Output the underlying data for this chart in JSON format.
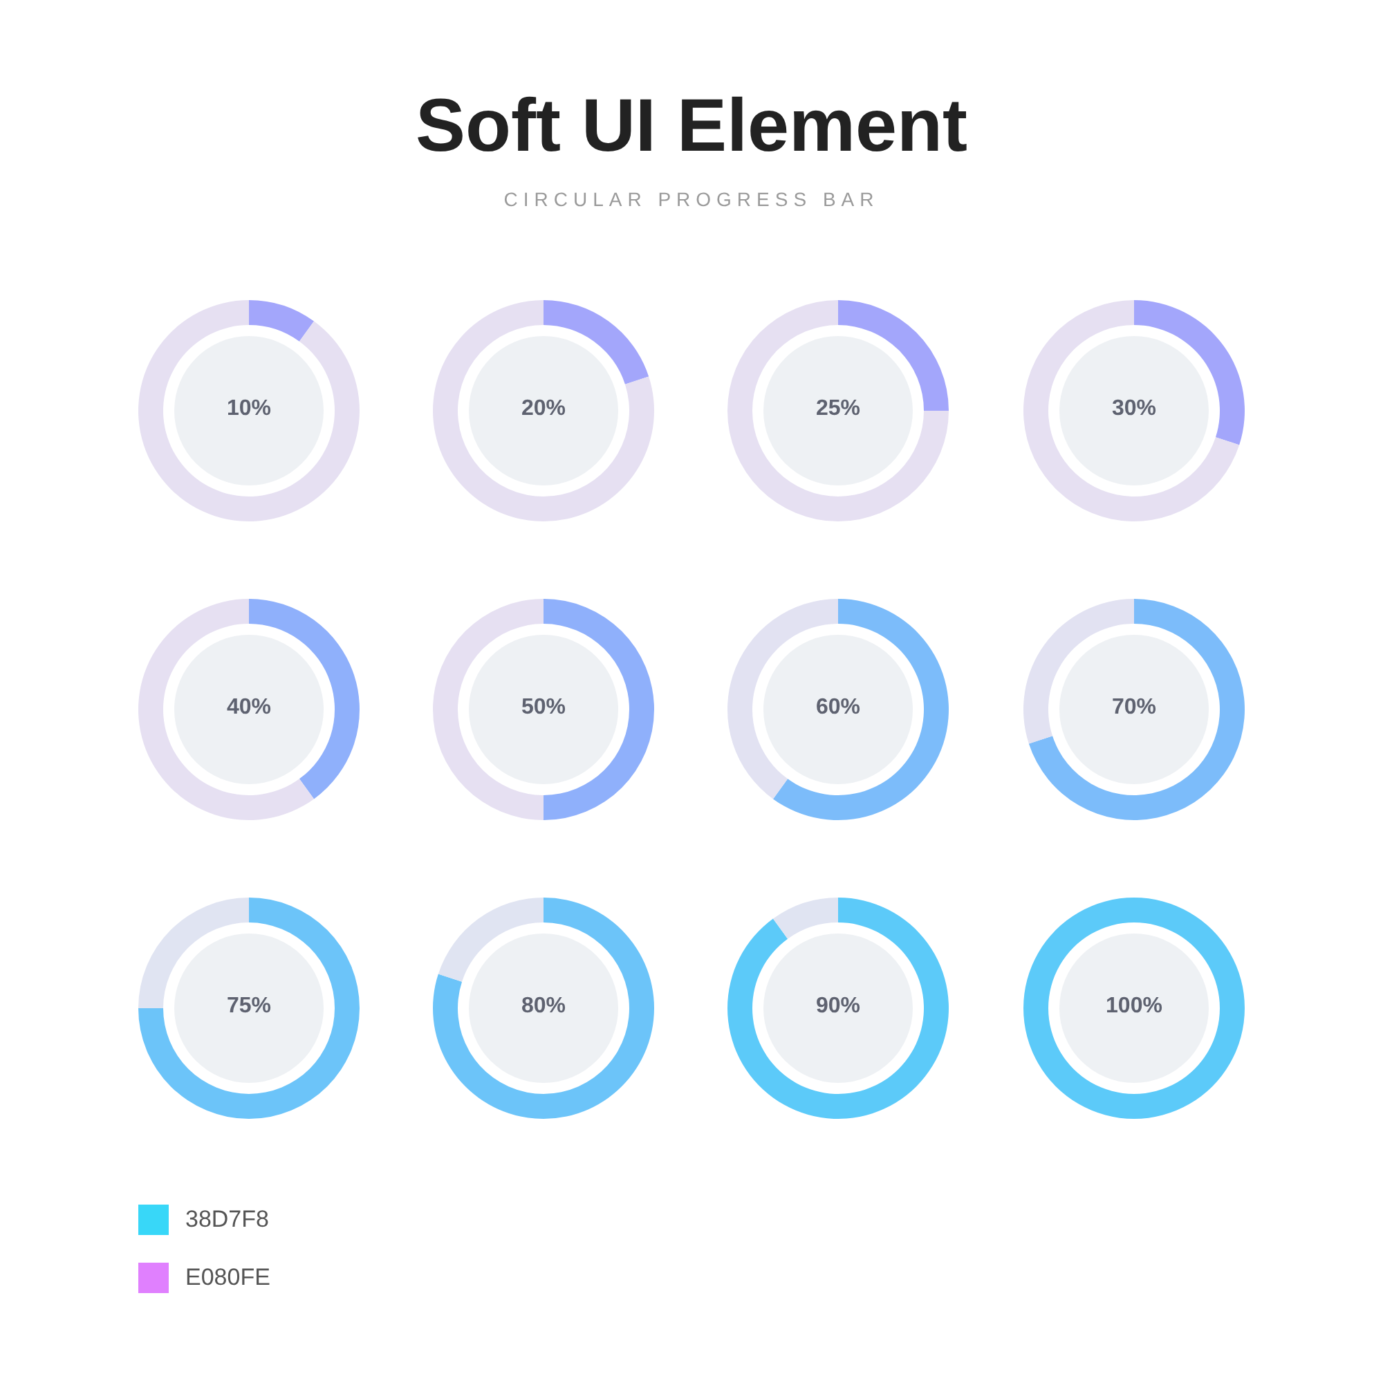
{
  "chart_data": [
    {
      "type": "other",
      "title": "Soft UI Element",
      "subtitle": "CIRCULAR PROGRESS BAR"
    },
    {
      "type": "donut",
      "categories": [
        null,
        null
      ],
      "values": [
        10,
        90
      ],
      "colors": [
        "#a3a6fb",
        "#e6e0f2"
      ],
      "annotations": [
        "10%"
      ]
    },
    {
      "type": "donut",
      "categories": [
        null,
        null
      ],
      "values": [
        20,
        80
      ],
      "colors": [
        "#a3a6fb",
        "#e6e0f2"
      ],
      "annotations": [
        "20%"
      ]
    },
    {
      "type": "donut",
      "categories": [
        null,
        null
      ],
      "values": [
        25,
        75
      ],
      "colors": [
        "#a3a6fb",
        "#e6e0f2"
      ],
      "annotations": [
        "25%"
      ]
    },
    {
      "type": "donut",
      "categories": [
        null,
        null
      ],
      "values": [
        30,
        70
      ],
      "colors": [
        "#a3a6fb",
        "#e6e0f2"
      ],
      "annotations": [
        "30%"
      ]
    },
    {
      "type": "donut",
      "categories": [
        null,
        null
      ],
      "values": [
        40,
        60
      ],
      "colors": [
        "#8fb0fb",
        "#e6e0f2"
      ],
      "annotations": [
        "40%"
      ]
    },
    {
      "type": "donut",
      "categories": [
        null,
        null
      ],
      "values": [
        50,
        50
      ],
      "colors": [
        "#8fb0fb",
        "#e6e0f2"
      ],
      "annotations": [
        "50%"
      ]
    },
    {
      "type": "donut",
      "categories": [
        null,
        null
      ],
      "values": [
        60,
        40
      ],
      "colors": [
        "#7cbcfa",
        "#e2e2f2"
      ],
      "annotations": [
        "60%"
      ]
    },
    {
      "type": "donut",
      "categories": [
        null,
        null
      ],
      "values": [
        70,
        30
      ],
      "colors": [
        "#7cbcfa",
        "#e2e2f2"
      ],
      "annotations": [
        "70%"
      ]
    },
    {
      "type": "donut",
      "categories": [
        null,
        null
      ],
      "values": [
        75,
        25
      ],
      "colors": [
        "#6cc4f9",
        "#e0e4f2"
      ],
      "annotations": [
        "75%"
      ]
    },
    {
      "type": "donut",
      "categories": [
        null,
        null
      ],
      "values": [
        80,
        20
      ],
      "colors": [
        "#6cc4f9",
        "#e0e4f2"
      ],
      "annotations": [
        "80%"
      ]
    },
    {
      "type": "donut",
      "categories": [
        null,
        null
      ],
      "values": [
        90,
        10
      ],
      "colors": [
        "#5ccaf9",
        "#e0e4f2"
      ],
      "annotations": [
        "90%"
      ]
    },
    {
      "type": "donut",
      "categories": [
        null,
        null
      ],
      "values": [
        100,
        0
      ],
      "colors": [
        "#5ccaf9",
        "#e0e4f2"
      ],
      "annotations": [
        "100%"
      ]
    },
    {
      "type": "other",
      "annotations": [
        "38D7F8",
        "E080FE"
      ],
      "colors": [
        "#38d7f8",
        "#e080fe"
      ]
    }
  ]
}
